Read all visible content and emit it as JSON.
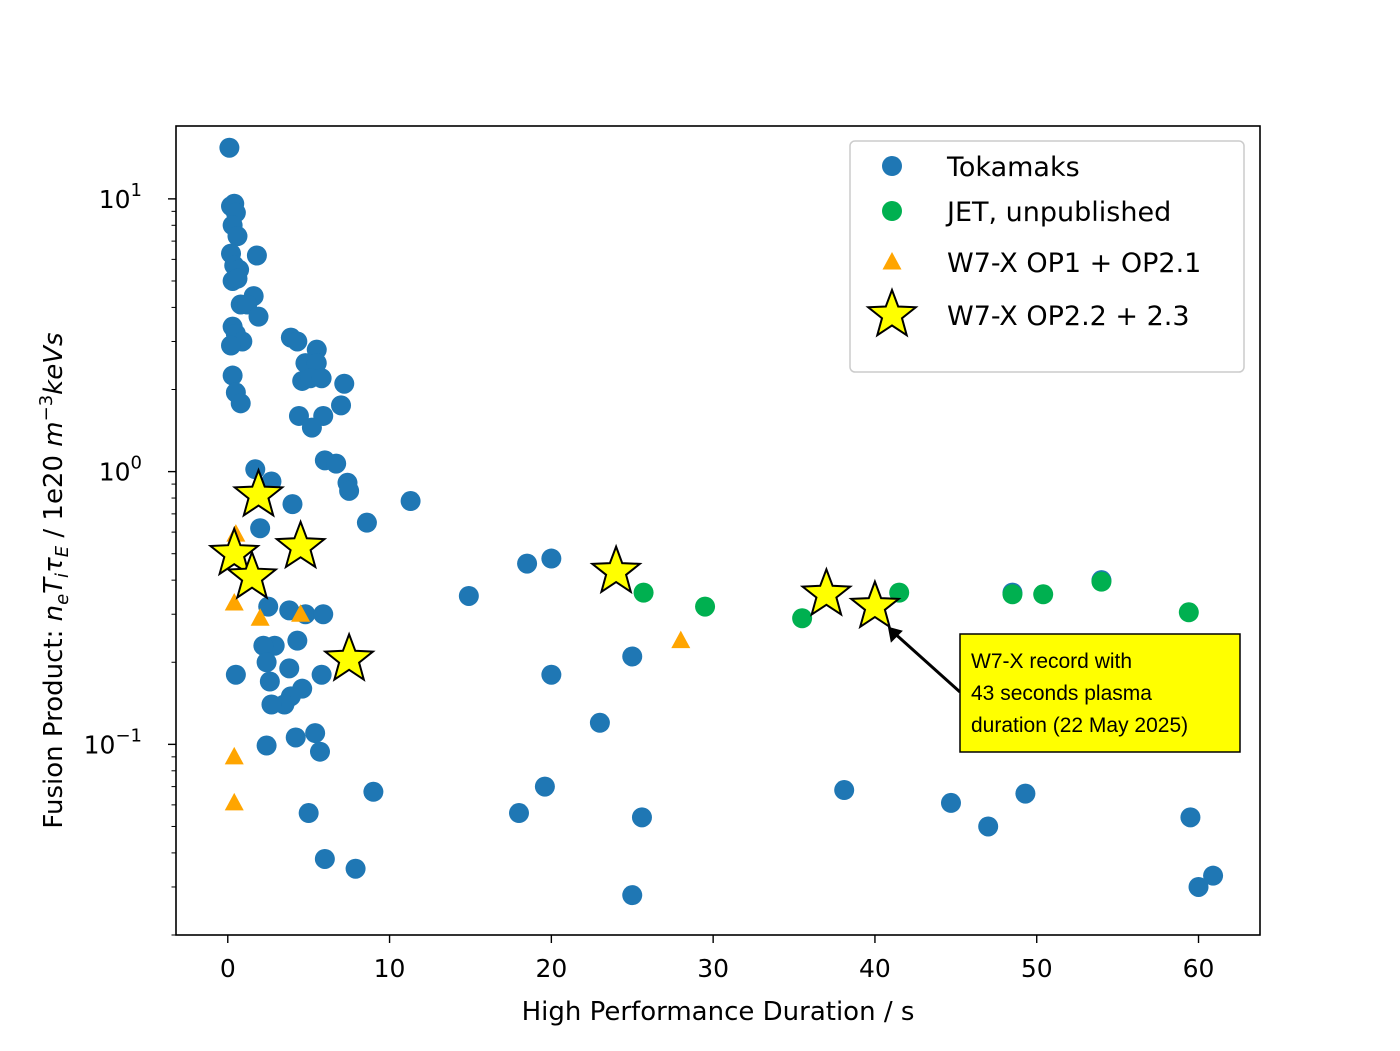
{
  "chart_data": {
    "type": "scatter",
    "title": "",
    "xlabel": "High Performance Duration / s",
    "ylabel": {
      "prefix": "Fusion Product:  ",
      "symbol": "n",
      "parts": [
        {
          "t": "n",
          "italic": true
        },
        {
          "t": "e",
          "italic": true,
          "sub": true
        },
        {
          "t": "T",
          "italic": true
        },
        {
          "t": "i",
          "italic": true,
          "sub": true
        },
        {
          "t": "τ",
          "italic": true
        },
        {
          "t": "E",
          "italic": true,
          "sub": true
        },
        {
          "t": " /  1e20 ",
          "italic": false
        },
        {
          "t": "m",
          "italic": true
        },
        {
          "t": "−3",
          "italic": false,
          "sup": true
        },
        {
          "t": "keVs",
          "italic": true
        }
      ]
    },
    "xlim": [
      -3.2,
      63.8
    ],
    "ylim": [
      0.02,
      18.5
    ],
    "yscale": "log",
    "grid": false,
    "legend_position": "top-right",
    "x_ticks": [
      {
        "value": 0,
        "label": "0"
      },
      {
        "value": 10,
        "label": "10"
      },
      {
        "value": 20,
        "label": "20"
      },
      {
        "value": 30,
        "label": "30"
      },
      {
        "value": 40,
        "label": "40"
      },
      {
        "value": 50,
        "label": "50"
      },
      {
        "value": 60,
        "label": "60"
      }
    ],
    "y_ticks": [
      {
        "value": 10,
        "base": "10",
        "exp": "1"
      },
      {
        "value": 1,
        "base": "10",
        "exp": "0"
      },
      {
        "value": 0.1,
        "base": "10",
        "exp": "−1"
      }
    ],
    "series": [
      {
        "name": "Tokamaks",
        "marker": "circle",
        "color": "#1f77b4",
        "points": [
          [
            0.1,
            15.4
          ],
          [
            0.2,
            9.4
          ],
          [
            0.4,
            9.6
          ],
          [
            0.5,
            8.9
          ],
          [
            0.3,
            8.0
          ],
          [
            0.6,
            7.3
          ],
          [
            0.2,
            6.3
          ],
          [
            0.4,
            5.7
          ],
          [
            0.7,
            5.5
          ],
          [
            0.3,
            5.0
          ],
          [
            0.6,
            5.1
          ],
          [
            1.8,
            6.2
          ],
          [
            1.6,
            4.4
          ],
          [
            0.8,
            4.1
          ],
          [
            1.2,
            4.1
          ],
          [
            1.9,
            3.7
          ],
          [
            0.3,
            3.4
          ],
          [
            0.5,
            3.2
          ],
          [
            0.9,
            3.0
          ],
          [
            0.2,
            2.9
          ],
          [
            0.3,
            2.25
          ],
          [
            0.5,
            1.95
          ],
          [
            0.8,
            1.78
          ],
          [
            3.9,
            3.1
          ],
          [
            4.3,
            3.0
          ],
          [
            5.5,
            2.8
          ],
          [
            4.8,
            2.5
          ],
          [
            5.5,
            2.5
          ],
          [
            4.6,
            2.15
          ],
          [
            5.1,
            2.2
          ],
          [
            5.8,
            2.2
          ],
          [
            7.2,
            2.1
          ],
          [
            7.0,
            1.75
          ],
          [
            4.4,
            1.6
          ],
          [
            5.9,
            1.6
          ],
          [
            5.2,
            1.45
          ],
          [
            6.0,
            1.1
          ],
          [
            6.7,
            1.07
          ],
          [
            1.7,
            1.02
          ],
          [
            2.7,
            0.92
          ],
          [
            7.4,
            0.91
          ],
          [
            7.5,
            0.85
          ],
          [
            4.0,
            0.76
          ],
          [
            11.3,
            0.78
          ],
          [
            8.6,
            0.65
          ],
          [
            2.0,
            0.62
          ],
          [
            18.5,
            0.46
          ],
          [
            20.0,
            0.48
          ],
          [
            14.9,
            0.35
          ],
          [
            2.5,
            0.32
          ],
          [
            3.8,
            0.31
          ],
          [
            4.8,
            0.3
          ],
          [
            5.9,
            0.3
          ],
          [
            4.3,
            0.24
          ],
          [
            2.9,
            0.23
          ],
          [
            2.2,
            0.23
          ],
          [
            2.4,
            0.2
          ],
          [
            3.8,
            0.19
          ],
          [
            25.0,
            0.21
          ],
          [
            0.5,
            0.18
          ],
          [
            2.6,
            0.17
          ],
          [
            5.8,
            0.18
          ],
          [
            20.0,
            0.18
          ],
          [
            4.6,
            0.16
          ],
          [
            3.9,
            0.15
          ],
          [
            3.5,
            0.14
          ],
          [
            2.7,
            0.14
          ],
          [
            23.0,
            0.12
          ],
          [
            4.2,
            0.106
          ],
          [
            5.4,
            0.11
          ],
          [
            2.4,
            0.099
          ],
          [
            5.7,
            0.094
          ],
          [
            9.0,
            0.067
          ],
          [
            19.6,
            0.07
          ],
          [
            38.1,
            0.068
          ],
          [
            44.7,
            0.061
          ],
          [
            49.3,
            0.066
          ],
          [
            47.0,
            0.05
          ],
          [
            5.0,
            0.056
          ],
          [
            18.0,
            0.056
          ],
          [
            25.6,
            0.054
          ],
          [
            59.5,
            0.054
          ],
          [
            6.0,
            0.038
          ],
          [
            7.9,
            0.035
          ],
          [
            25.0,
            0.028
          ],
          [
            60.0,
            0.03
          ],
          [
            60.9,
            0.033
          ],
          [
            54.0,
            0.4
          ],
          [
            48.5,
            0.36
          ]
        ]
      },
      {
        "name": "JET, unpublished",
        "marker": "circle",
        "color": "#00b050",
        "points": [
          [
            25.7,
            0.36
          ],
          [
            29.5,
            0.32
          ],
          [
            35.5,
            0.29
          ],
          [
            41.5,
            0.36
          ],
          [
            48.5,
            0.355
          ],
          [
            50.4,
            0.355
          ],
          [
            54.0,
            0.395
          ],
          [
            59.4,
            0.305
          ]
        ]
      },
      {
        "name": "W7-X OP1 + OP2.1",
        "marker": "triangle",
        "color": "#ffa500",
        "points": [
          [
            0.5,
            0.59
          ],
          [
            0.4,
            0.33
          ],
          [
            2.0,
            0.29
          ],
          [
            4.5,
            0.3
          ],
          [
            28.0,
            0.24
          ],
          [
            0.4,
            0.09
          ],
          [
            0.4,
            0.061
          ]
        ]
      },
      {
        "name": "W7-X OP2.2 + 2.3",
        "marker": "star",
        "color": "#ffff00",
        "points": [
          [
            1.9,
            0.82
          ],
          [
            0.4,
            0.5
          ],
          [
            4.5,
            0.53
          ],
          [
            1.5,
            0.41
          ],
          [
            7.5,
            0.205
          ],
          [
            24.0,
            0.43
          ],
          [
            37.0,
            0.355
          ],
          [
            40.0,
            0.32
          ]
        ]
      }
    ],
    "annotation": {
      "lines": [
        "W7-X record with",
        "43 seconds plasma",
        "duration (22 May 2025)"
      ],
      "point": [
        40.8,
        0.27
      ],
      "background": "#ffff00"
    }
  }
}
